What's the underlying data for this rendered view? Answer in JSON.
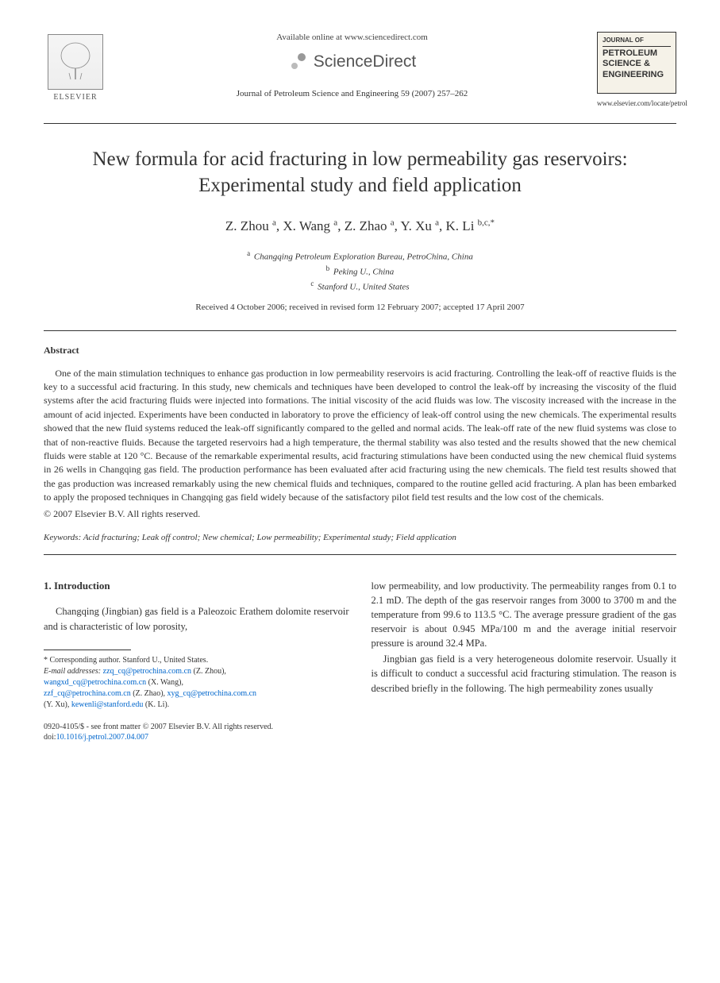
{
  "header": {
    "available_text": "Available online at www.sciencedirect.com",
    "sciencedirect_label": "ScienceDirect",
    "journal_ref": "Journal of Petroleum Science and Engineering 59 (2007) 257–262",
    "elsevier_label": "ELSEVIER",
    "cover_journal_of": "JOURNAL OF",
    "cover_title": "PETROLEUM SCIENCE & ENGINEERING",
    "cover_url": "www.elsevier.com/locate/petrol"
  },
  "title": "New formula for acid fracturing in low permeability gas reservoirs: Experimental study and field application",
  "authors_html": "Z. Zhou <sup>a</sup>, X. Wang <sup>a</sup>, Z. Zhao <sup>a</sup>, Y. Xu <sup>a</sup>, K. Li <sup>b,c,*</sup>",
  "affiliations": [
    {
      "sup": "a",
      "text": "Changqing Petroleum Exploration Bureau, PetroChina, China"
    },
    {
      "sup": "b",
      "text": "Peking U., China"
    },
    {
      "sup": "c",
      "text": "Stanford U., United States"
    }
  ],
  "dates": "Received 4 October 2006; received in revised form 12 February 2007; accepted 17 April 2007",
  "abstract": {
    "heading": "Abstract",
    "body": "One of the main stimulation techniques to enhance gas production in low permeability reservoirs is acid fracturing. Controlling the leak-off of reactive fluids is the key to a successful acid fracturing. In this study, new chemicals and techniques have been developed to control the leak-off by increasing the viscosity of the fluid systems after the acid fracturing fluids were injected into formations. The initial viscosity of the acid fluids was low. The viscosity increased with the increase in the amount of acid injected. Experiments have been conducted in laboratory to prove the efficiency of leak-off control using the new chemicals. The experimental results showed that the new fluid systems reduced the leak-off significantly compared to the gelled and normal acids. The leak-off rate of the new fluid systems was close to that of non-reactive fluids. Because the targeted reservoirs had a high temperature, the thermal stability was also tested and the results showed that the new chemical fluids were stable at 120 °C. Because of the remarkable experimental results, acid fracturing stimulations have been conducted using the new chemical fluid systems in 26 wells in Changqing gas field. The production performance has been evaluated after acid fracturing using the new chemicals. The field test results showed that the gas production was increased remarkably using the new chemical fluids and techniques, compared to the routine gelled acid fracturing. A plan has been embarked to apply the proposed techniques in Changqing gas field widely because of the satisfactory pilot field test results and the low cost of the chemicals.",
    "copyright": "© 2007 Elsevier B.V. All rights reserved."
  },
  "keywords": {
    "label": "Keywords:",
    "text": " Acid fracturing; Leak off control; New chemical; Low permeability; Experimental study; Field application"
  },
  "intro": {
    "heading": "1. Introduction",
    "left_para": "Changqing (Jingbian) gas field is a Paleozoic Erathem dolomite reservoir and is characteristic of low porosity,",
    "right_para1": "low permeability, and low productivity. The permeability ranges from 0.1 to 2.1 mD. The depth of the gas reservoir ranges from 3000 to 3700 m and the temperature from 99.6 to 113.5 °C. The average pressure gradient of the gas reservoir is about 0.945 MPa/100 m and the average initial reservoir pressure is around 32.4 MPa.",
    "right_para2": "Jingbian gas field is a very heterogeneous dolomite reservoir. Usually it is difficult to conduct a successful acid fracturing stimulation. The reason is described briefly in the following. The high permeability zones usually"
  },
  "footnote": {
    "corresponding": "* Corresponding author. Stanford U., United States.",
    "email_label": "E-mail addresses:",
    "emails": [
      {
        "addr": "zzq_cq@petrochina.com.cn",
        "who": "(Z. Zhou),"
      },
      {
        "addr": "wangxd_cq@petrochina.com.cn",
        "who": "(X. Wang),"
      },
      {
        "addr": "zzf_cq@petrochina.com.cn",
        "who": "(Z. Zhao),"
      },
      {
        "addr": "xyg_cq@petrochina.com.cn",
        "who": ""
      },
      {
        "addr": "",
        "who": "(Y. Xu),"
      },
      {
        "addr": "kewenli@stanford.edu",
        "who": "(K. Li)."
      }
    ]
  },
  "footer": {
    "line1": "0920-4105/$ - see front matter © 2007 Elsevier B.V. All rights reserved.",
    "doi_label": "doi:",
    "doi": "10.1016/j.petrol.2007.04.007"
  }
}
